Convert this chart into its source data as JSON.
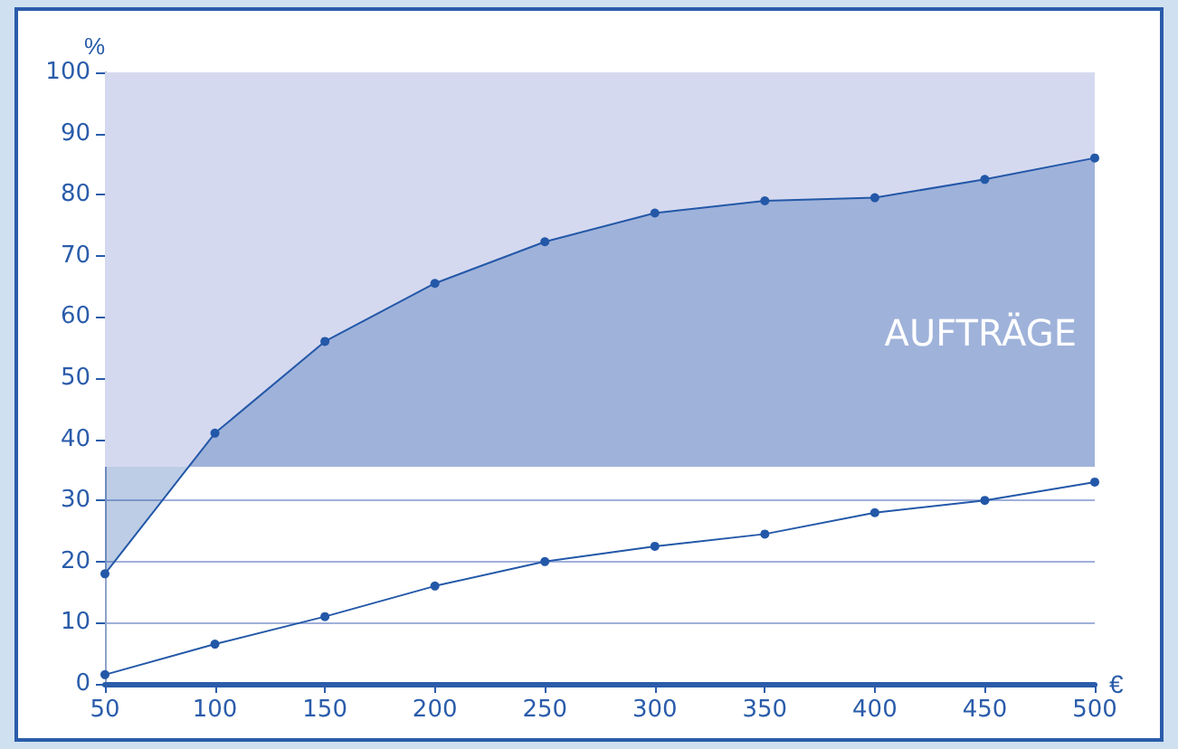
{
  "chart_data": {
    "type": "line",
    "xlabel": "€",
    "ylabel": "%",
    "x": [
      50,
      100,
      150,
      200,
      250,
      300,
      350,
      400,
      450,
      500
    ],
    "series": [
      {
        "type": "area",
        "color": "#2358a8",
        "values": [
          18,
          41,
          56,
          65.5,
          72.3,
          77,
          79,
          79.5,
          82.5,
          86
        ]
      },
      {
        "color": "#2358a8",
        "values": [
          1.5,
          6.5,
          11,
          16,
          20,
          22.5,
          24.5,
          28,
          30,
          33
        ]
      }
    ],
    "bands": [
      {
        "axis": "y",
        "from": 35.5,
        "to": 100,
        "color": "#d5d9ef"
      }
    ],
    "annotations": [
      "AUFTRÄGE"
    ],
    "xlim": [
      50,
      500
    ],
    "xticks": [
      50,
      100,
      150,
      200,
      250,
      300,
      350,
      400,
      450,
      500
    ],
    "ylim": [
      0,
      100
    ],
    "yticks": [
      0,
      10,
      20,
      30,
      40,
      50,
      60,
      70,
      80,
      90,
      100
    ],
    "grid": "y",
    "marker": "circle",
    "line_style": "solid"
  }
}
